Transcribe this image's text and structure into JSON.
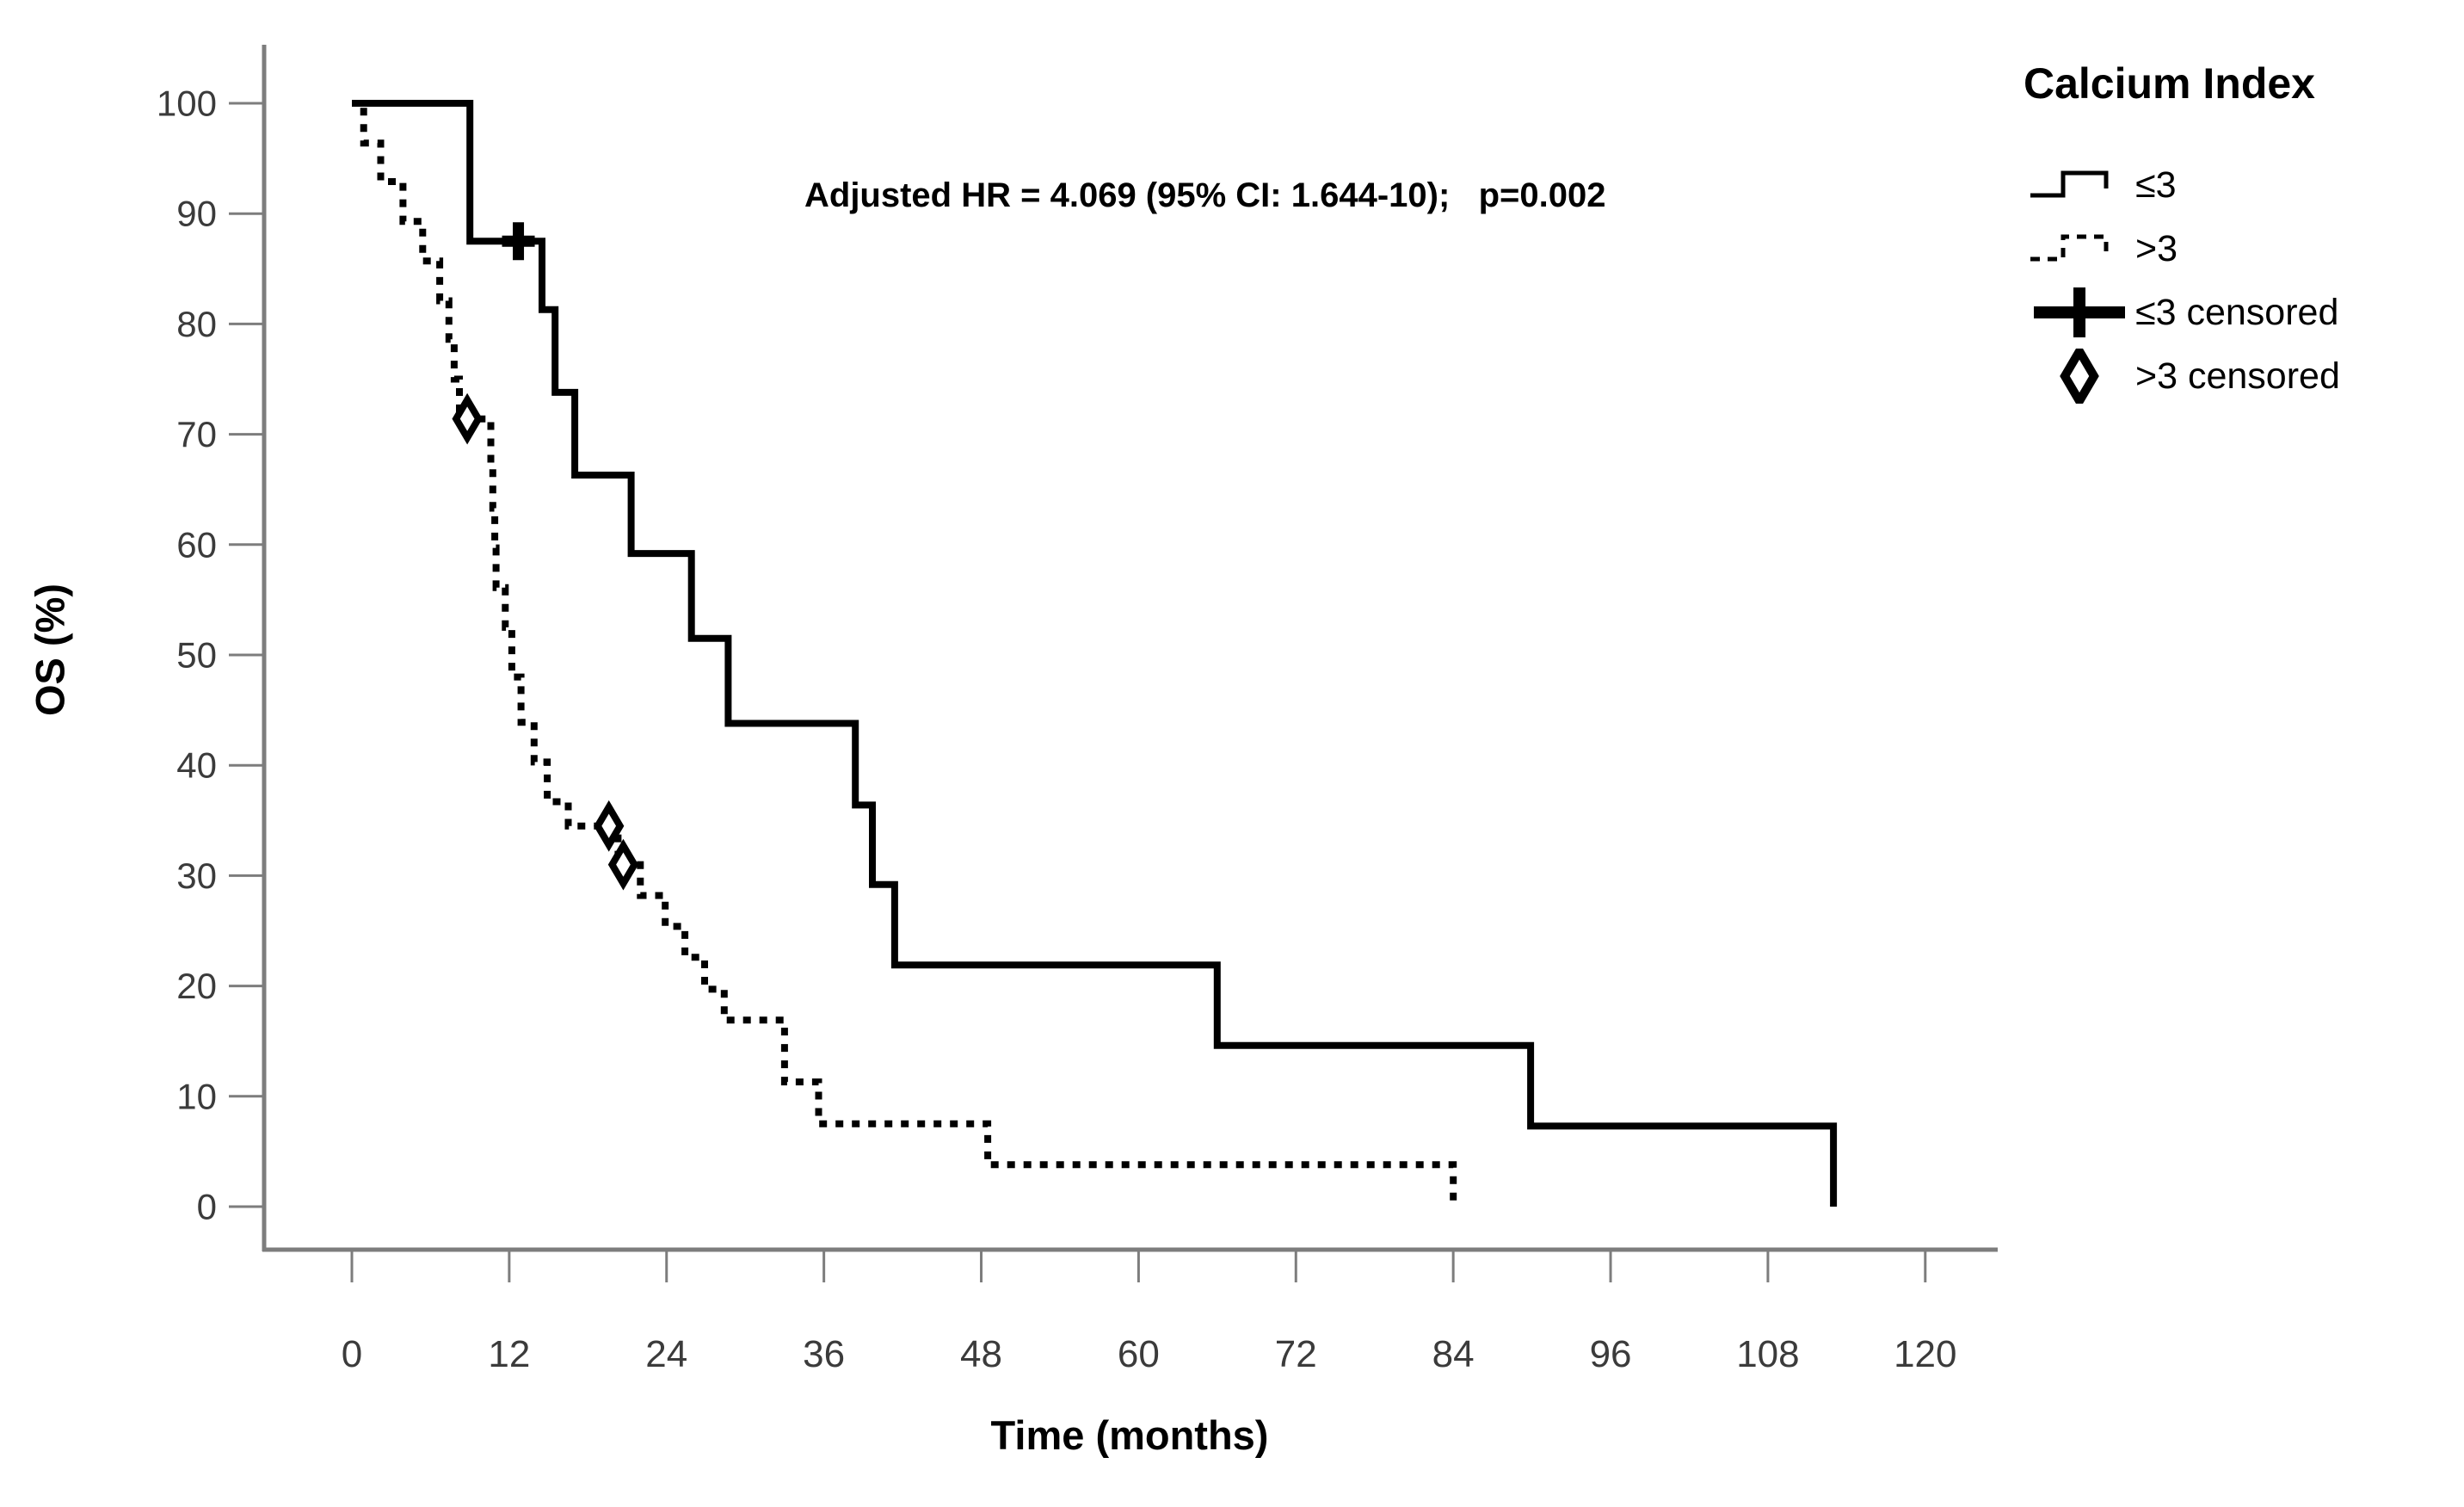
{
  "colors": {
    "background": "#ffffff",
    "curve": "#000000",
    "axis_line": "#7d7d7d",
    "tick_label": "#3b3b3b"
  },
  "annotation": {
    "text": "Adjusted HR = 4.069 (95% CI: 1.644-10);   p=0.002"
  },
  "legend": {
    "title": "Calcium Index",
    "items": [
      {
        "label": "≤3",
        "symbol": "solid-step-line"
      },
      {
        "label": ">3",
        "symbol": "dashed-step-line"
      },
      {
        "label": "≤3 censored",
        "symbol": "plus-marker"
      },
      {
        "label": ">3 censored",
        "symbol": "diamond-marker"
      }
    ]
  },
  "chart_data": {
    "type": "line",
    "subtype": "kaplan-meier-step",
    "title": "",
    "xlabel": "Time (months)",
    "ylabel": "OS (%)",
    "xlim": [
      0,
      125
    ],
    "ylim": [
      0,
      100
    ],
    "x_ticks": [
      0,
      12,
      24,
      36,
      48,
      60,
      72,
      84,
      96,
      108,
      120
    ],
    "y_ticks": [
      0,
      10,
      20,
      30,
      40,
      50,
      60,
      70,
      80,
      90,
      100
    ],
    "grid": false,
    "legend_position": "top-right",
    "series": [
      {
        "name": "≤3",
        "group": "Calcium Index ≤ 3",
        "line_style": "solid",
        "color": "#000000",
        "steps": [
          [
            0,
            100
          ],
          [
            9,
            87.5
          ],
          [
            14.5,
            81.3
          ],
          [
            15.5,
            73.8
          ],
          [
            17,
            66.3
          ],
          [
            21.3,
            59.2
          ],
          [
            25.9,
            51.5
          ],
          [
            28.7,
            43.8
          ],
          [
            38.4,
            36.4
          ],
          [
            39.7,
            29.2
          ],
          [
            41.4,
            21.9
          ],
          [
            66,
            14.6
          ],
          [
            89.9,
            7.3
          ],
          [
            113,
            0
          ]
        ],
        "censored": [
          [
            12.7,
            87.5
          ]
        ]
      },
      {
        "name": ">3",
        "group": "Calcium Index > 3",
        "line_style": "dotted",
        "color": "#000000",
        "steps": [
          [
            0,
            100
          ],
          [
            0.9,
            96.4
          ],
          [
            2.2,
            92.9
          ],
          [
            3.9,
            89.3
          ],
          [
            5.4,
            85.7
          ],
          [
            6.7,
            82.1
          ],
          [
            7.4,
            78.6
          ],
          [
            7.8,
            75
          ],
          [
            8.2,
            71.4
          ],
          [
            10.6,
            66.9
          ],
          [
            10.75,
            63.3
          ],
          [
            10.9,
            59.7
          ],
          [
            11,
            56.1
          ],
          [
            11.7,
            52.5
          ],
          [
            12.2,
            48
          ],
          [
            12.9,
            43.9
          ],
          [
            13.9,
            40.3
          ],
          [
            14.9,
            36.7
          ],
          [
            16.5,
            34.5
          ],
          [
            20.3,
            31
          ],
          [
            22,
            28.2
          ],
          [
            23.9,
            25.4
          ],
          [
            25.4,
            22.6
          ],
          [
            26.9,
            19.7
          ],
          [
            28.4,
            16.9
          ],
          [
            33,
            11.3
          ],
          [
            35.6,
            7.5
          ],
          [
            48.5,
            3.8
          ],
          [
            84,
            0
          ]
        ],
        "censored": [
          [
            8.8,
            71.4
          ],
          [
            19.6,
            34.5
          ],
          [
            20.7,
            31
          ]
        ]
      }
    ]
  }
}
